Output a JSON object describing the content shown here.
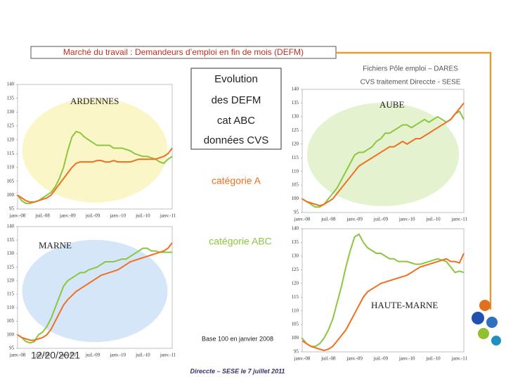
{
  "slide": {
    "title": "Marché du travail : Demandeurs d’emploi en fin de mois (DEFM)",
    "source_lines": [
      "Fichiers Pôle emploi – DARES",
      "CVS traitement Direccte - SESE"
    ],
    "box_lines": [
      "Evolution",
      "des DEFM",
      "cat ABC",
      "données CVS"
    ],
    "note": "Base 100 en janvier 2008",
    "date": "12/20/2021",
    "footer": "Direccte – SESE le 7 juillet 2011"
  },
  "chart_data": [
    {
      "type": "line",
      "title": "ARDENNES",
      "categories": [
        "janv.-08",
        null,
        null,
        null,
        null,
        null,
        "juil.-08",
        null,
        null,
        null,
        null,
        null,
        "janv.-09",
        null,
        null,
        null,
        null,
        null,
        "juil.-09",
        null,
        null,
        null,
        null,
        null,
        "janv.-10",
        null,
        null,
        null,
        null,
        null,
        "juil.-10",
        null,
        null,
        null,
        null,
        null,
        "janv.-11",
        null
      ],
      "series": [
        {
          "name": "catégorie A",
          "color": "#f07020",
          "values": [
            100,
            99,
            98,
            97.5,
            97.5,
            98,
            98.5,
            99,
            100,
            102,
            104,
            106,
            108,
            110,
            111.5,
            112,
            112,
            112,
            112,
            112.5,
            112.5,
            112,
            112,
            112.5,
            112,
            112,
            112,
            112,
            112.5,
            113,
            113,
            113,
            113,
            113,
            113.5,
            114,
            115,
            117
          ]
        },
        {
          "name": "catégorie ABC",
          "color": "#8cc63f",
          "values": [
            100,
            98,
            97,
            97,
            97.5,
            98,
            99,
            100,
            101,
            103,
            106,
            110,
            116,
            121,
            123,
            122.5,
            121,
            120,
            119,
            118,
            118,
            118,
            118,
            117,
            117,
            117,
            116.5,
            116,
            115,
            114.5,
            114,
            114,
            113.5,
            113,
            112,
            111.5,
            113,
            114
          ]
        }
      ],
      "ylim": [
        95,
        140
      ],
      "yticks": [
        95,
        100,
        105,
        110,
        115,
        120,
        125,
        130,
        135,
        140
      ]
    },
    {
      "type": "line",
      "title": "AUBE",
      "categories": [
        "janv.-08",
        null,
        null,
        null,
        null,
        null,
        "juil.-08",
        null,
        null,
        null,
        null,
        null,
        "janv.-09",
        null,
        null,
        null,
        null,
        null,
        "juil.-09",
        null,
        null,
        null,
        null,
        null,
        "janv.-10",
        null,
        null,
        null,
        null,
        null,
        "juil.-10",
        null,
        null,
        null,
        null,
        null,
        "janv.-11",
        null
      ],
      "series": [
        {
          "name": "catégorie A",
          "color": "#f07020",
          "values": [
            100,
            99,
            98.5,
            98,
            97.5,
            98,
            99,
            100,
            102,
            104,
            106,
            108,
            110,
            112,
            113,
            114,
            115,
            116,
            117,
            118,
            119,
            119,
            120,
            121,
            120,
            121,
            122,
            122,
            123,
            124,
            125,
            126,
            127,
            128,
            129,
            131,
            133,
            135
          ]
        },
        {
          "name": "catégorie ABC",
          "color": "#8cc63f",
          "values": [
            100,
            99,
            98,
            97,
            97,
            98,
            100,
            102,
            104,
            107,
            110,
            113,
            116,
            117,
            117,
            118,
            119,
            121,
            122,
            124,
            124,
            125,
            126,
            127,
            127,
            126,
            127,
            128,
            129,
            128,
            129,
            130,
            129,
            128,
            129,
            131,
            132,
            129
          ]
        }
      ],
      "ylim": [
        95,
        140
      ],
      "yticks": [
        95,
        100,
        105,
        110,
        115,
        120,
        125,
        130,
        135,
        140
      ]
    },
    {
      "type": "line",
      "title": "MARNE",
      "categories": [
        "janv.-08",
        null,
        null,
        null,
        null,
        null,
        "juil.-08",
        null,
        null,
        null,
        null,
        null,
        "janv.-09",
        null,
        null,
        null,
        null,
        null,
        "juil.-09",
        null,
        null,
        null,
        null,
        null,
        "janv.-10",
        null,
        null,
        null,
        null,
        null,
        "juil.-10",
        null,
        null,
        null,
        null,
        null,
        "janv.-11",
        null
      ],
      "series": [
        {
          "name": "catégorie A",
          "color": "#f07020",
          "values": [
            100,
            99,
            98.5,
            98,
            98,
            98.5,
            99,
            100,
            102,
            105,
            108,
            111,
            113,
            114.5,
            116,
            117,
            118,
            119,
            120,
            121,
            122,
            122.5,
            123,
            123.5,
            124,
            125,
            126,
            127,
            127.5,
            128,
            128.5,
            129,
            129.5,
            130,
            130.5,
            131,
            132,
            134
          ]
        },
        {
          "name": "catégorie ABC",
          "color": "#8cc63f",
          "values": [
            100,
            99,
            97.5,
            97,
            97.5,
            100,
            101,
            103,
            106,
            110,
            114,
            118,
            120,
            121,
            122,
            123,
            123,
            124,
            124.5,
            125,
            126,
            127,
            127,
            127,
            127.5,
            128,
            128,
            129,
            130,
            131,
            132,
            132,
            131,
            131,
            130.5,
            130.5,
            130.5,
            130.5
          ]
        }
      ],
      "ylim": [
        95,
        140
      ],
      "yticks": [
        95,
        100,
        105,
        110,
        115,
        120,
        125,
        130,
        135,
        140
      ]
    },
    {
      "type": "line",
      "title": "HAUTE-MARNE",
      "categories": [
        "janv.-08",
        null,
        null,
        null,
        null,
        null,
        "juil.-08",
        null,
        null,
        null,
        null,
        null,
        "janv.-09",
        null,
        null,
        null,
        null,
        null,
        "juil.-09",
        null,
        null,
        null,
        null,
        null,
        "janv.-10",
        null,
        null,
        null,
        null,
        null,
        "juil.-10",
        null,
        null,
        null,
        null,
        null,
        "janv.-11",
        null
      ],
      "series": [
        {
          "name": "catégorie A",
          "color": "#f07020",
          "values": [
            99,
            98,
            97,
            96.5,
            96,
            95.5,
            96,
            97,
            99,
            101,
            103,
            106,
            109,
            112,
            115,
            117,
            118,
            119,
            120,
            120.5,
            121,
            121.5,
            122,
            122.5,
            123,
            124,
            125,
            126,
            126.5,
            127,
            127.5,
            128,
            128.5,
            129,
            128,
            128,
            127.5,
            131
          ]
        },
        {
          "name": "catégorie ABC",
          "color": "#8cc63f",
          "values": [
            100,
            98,
            97,
            97,
            98,
            100,
            103,
            107,
            113,
            119,
            126,
            132,
            137,
            138,
            135,
            133,
            132,
            131,
            131,
            130,
            129,
            129,
            128,
            128,
            128,
            127.5,
            127,
            127,
            127.5,
            128,
            128.5,
            129,
            128.5,
            128,
            126,
            124,
            124.5,
            124
          ]
        }
      ],
      "ylim": [
        95,
        140
      ],
      "yticks": [
        95,
        100,
        105,
        110,
        115,
        120,
        125,
        130,
        135,
        140
      ]
    }
  ]
}
